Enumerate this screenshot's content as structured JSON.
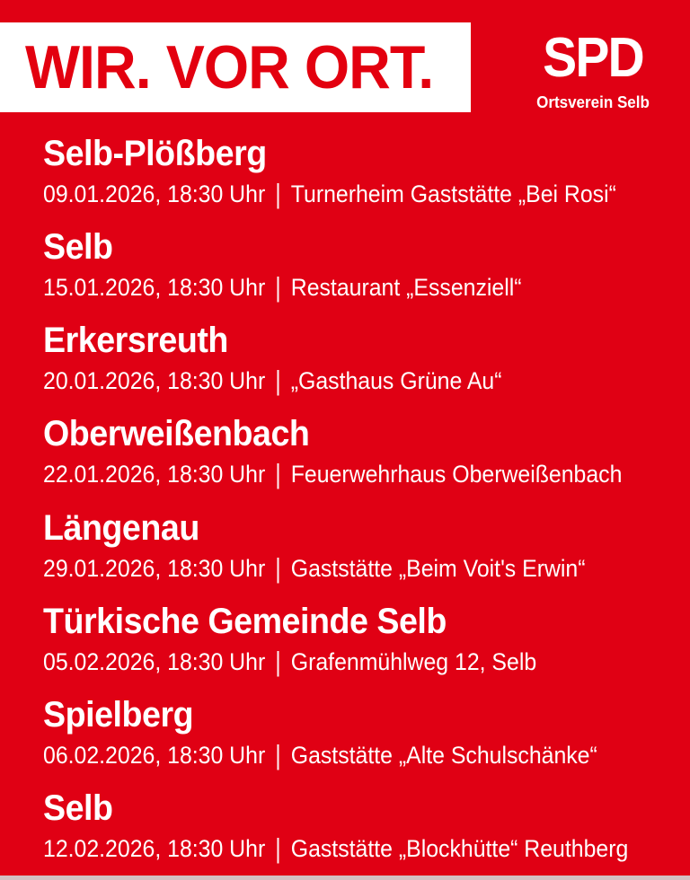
{
  "colors": {
    "background": "#e00014",
    "brand_red": "#e3000f",
    "banner_background": "#ffffff",
    "text_white": "#ffffff",
    "bottom_strip": "#d4c0c2"
  },
  "header": {
    "headline": "WIR. VOR ORT.",
    "logo": {
      "brand": "SPD",
      "subtitle": "Ortsverein Selb"
    }
  },
  "separator": "|",
  "events": [
    {
      "name": "Selb-Plößberg",
      "datetime": "09.01.2026, 18:30 Uhr",
      "venue": "Turnerheim Gaststätte „Bei Rosi“"
    },
    {
      "name": "Selb",
      "datetime": "15.01.2026, 18:30 Uhr",
      "venue": "Restaurant „Essenziell“"
    },
    {
      "name": "Erkersreuth",
      "datetime": "20.01.2026, 18:30 Uhr",
      "venue": "„Gasthaus Grüne Au“"
    },
    {
      "name": "Oberweißenbach",
      "datetime": "22.01.2026, 18:30 Uhr",
      "venue": "Feuerwehrhaus Oberweißenbach"
    },
    {
      "name": "Längenau",
      "datetime": "29.01.2026, 18:30 Uhr",
      "venue": "Gaststätte „Beim Voit's Erwin“"
    },
    {
      "name": "Türkische Gemeinde Selb",
      "datetime": "05.02.2026, 18:30 Uhr",
      "venue": "Grafenmühlweg 12, Selb"
    },
    {
      "name": "Spielberg",
      "datetime": "06.02.2026, 18:30 Uhr",
      "venue": "Gaststätte „Alte Schulschänke“"
    },
    {
      "name": "Selb",
      "datetime": "12.02.2026, 18:30 Uhr",
      "venue": "Gaststätte „Blockhütte“ Reuthberg"
    }
  ]
}
